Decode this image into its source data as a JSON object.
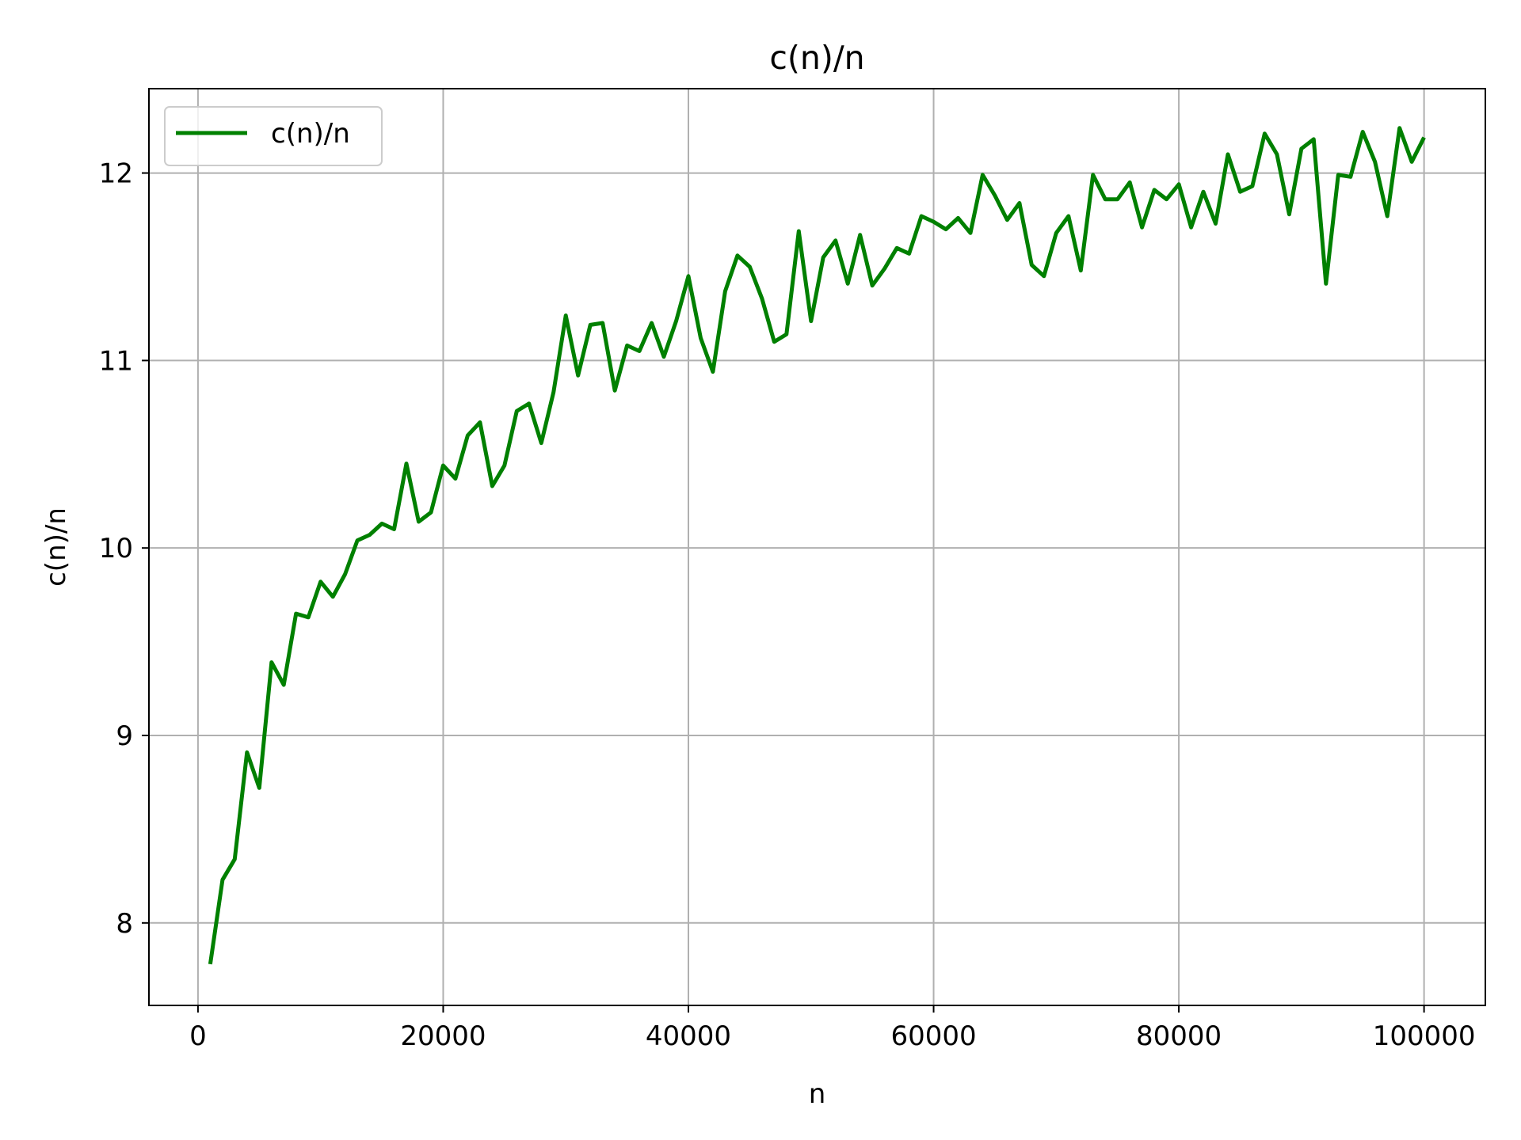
{
  "chart_data": {
    "type": "line",
    "title": "c(n)/n",
    "xlabel": "n",
    "ylabel": "c(n)/n",
    "xlim": [
      -4000,
      105000
    ],
    "ylim": [
      7.56,
      12.45
    ],
    "xticks": [
      0,
      20000,
      40000,
      60000,
      80000,
      100000
    ],
    "xtick_labels": [
      "0",
      "20000",
      "40000",
      "60000",
      "80000",
      "100000"
    ],
    "yticks": [
      8,
      9,
      10,
      11,
      12
    ],
    "ytick_labels": [
      "8",
      "9",
      "10",
      "11",
      "12"
    ],
    "grid": true,
    "legend_position": "top-left",
    "series": [
      {
        "name": "c(n)/n",
        "color": "#008000",
        "x": [
          1000,
          2000,
          3000,
          4000,
          5000,
          6000,
          7000,
          8000,
          9000,
          10000,
          11000,
          12000,
          13000,
          14000,
          15000,
          16000,
          17000,
          18000,
          19000,
          20000,
          21000,
          22000,
          23000,
          24000,
          25000,
          26000,
          27000,
          28000,
          29000,
          30000,
          31000,
          32000,
          33000,
          34000,
          35000,
          36000,
          37000,
          38000,
          39000,
          40000,
          41000,
          42000,
          43000,
          44000,
          45000,
          46000,
          47000,
          48000,
          49000,
          50000,
          51000,
          52000,
          53000,
          54000,
          55000,
          56000,
          57000,
          58000,
          59000,
          60000,
          61000,
          62000,
          63000,
          64000,
          65000,
          66000,
          67000,
          68000,
          69000,
          70000,
          71000,
          72000,
          73000,
          74000,
          75000,
          76000,
          77000,
          78000,
          79000,
          80000,
          81000,
          82000,
          83000,
          84000,
          85000,
          86000,
          87000,
          88000,
          89000,
          90000,
          91000,
          92000,
          93000,
          94000,
          95000,
          96000,
          97000,
          98000,
          99000,
          100000
        ],
        "values": [
          7.78,
          8.23,
          8.34,
          8.91,
          8.72,
          9.39,
          9.27,
          9.65,
          9.63,
          9.82,
          9.74,
          9.86,
          10.04,
          10.07,
          10.13,
          10.1,
          10.45,
          10.14,
          10.19,
          10.44,
          10.37,
          10.6,
          10.67,
          10.33,
          10.44,
          10.73,
          10.77,
          10.56,
          10.83,
          11.24,
          10.92,
          11.19,
          11.2,
          10.84,
          11.08,
          11.05,
          11.2,
          11.02,
          11.21,
          11.45,
          11.12,
          10.94,
          11.37,
          11.56,
          11.5,
          11.33,
          11.1,
          11.14,
          11.69,
          11.21,
          11.55,
          11.64,
          11.41,
          11.67,
          11.4,
          11.49,
          11.6,
          11.57,
          11.77,
          11.74,
          11.7,
          11.76,
          11.68,
          11.99,
          11.88,
          11.75,
          11.84,
          11.51,
          11.45,
          11.68,
          11.77,
          11.48,
          11.99,
          11.86,
          11.86,
          11.95,
          11.71,
          11.91,
          11.86,
          11.94,
          11.71,
          11.9,
          11.73,
          12.1,
          11.9,
          11.93,
          12.21,
          12.1,
          11.78,
          12.13,
          12.18,
          11.41,
          11.99,
          11.98,
          12.22,
          12.06,
          11.77,
          12.24,
          12.06,
          12.19
        ]
      }
    ]
  }
}
